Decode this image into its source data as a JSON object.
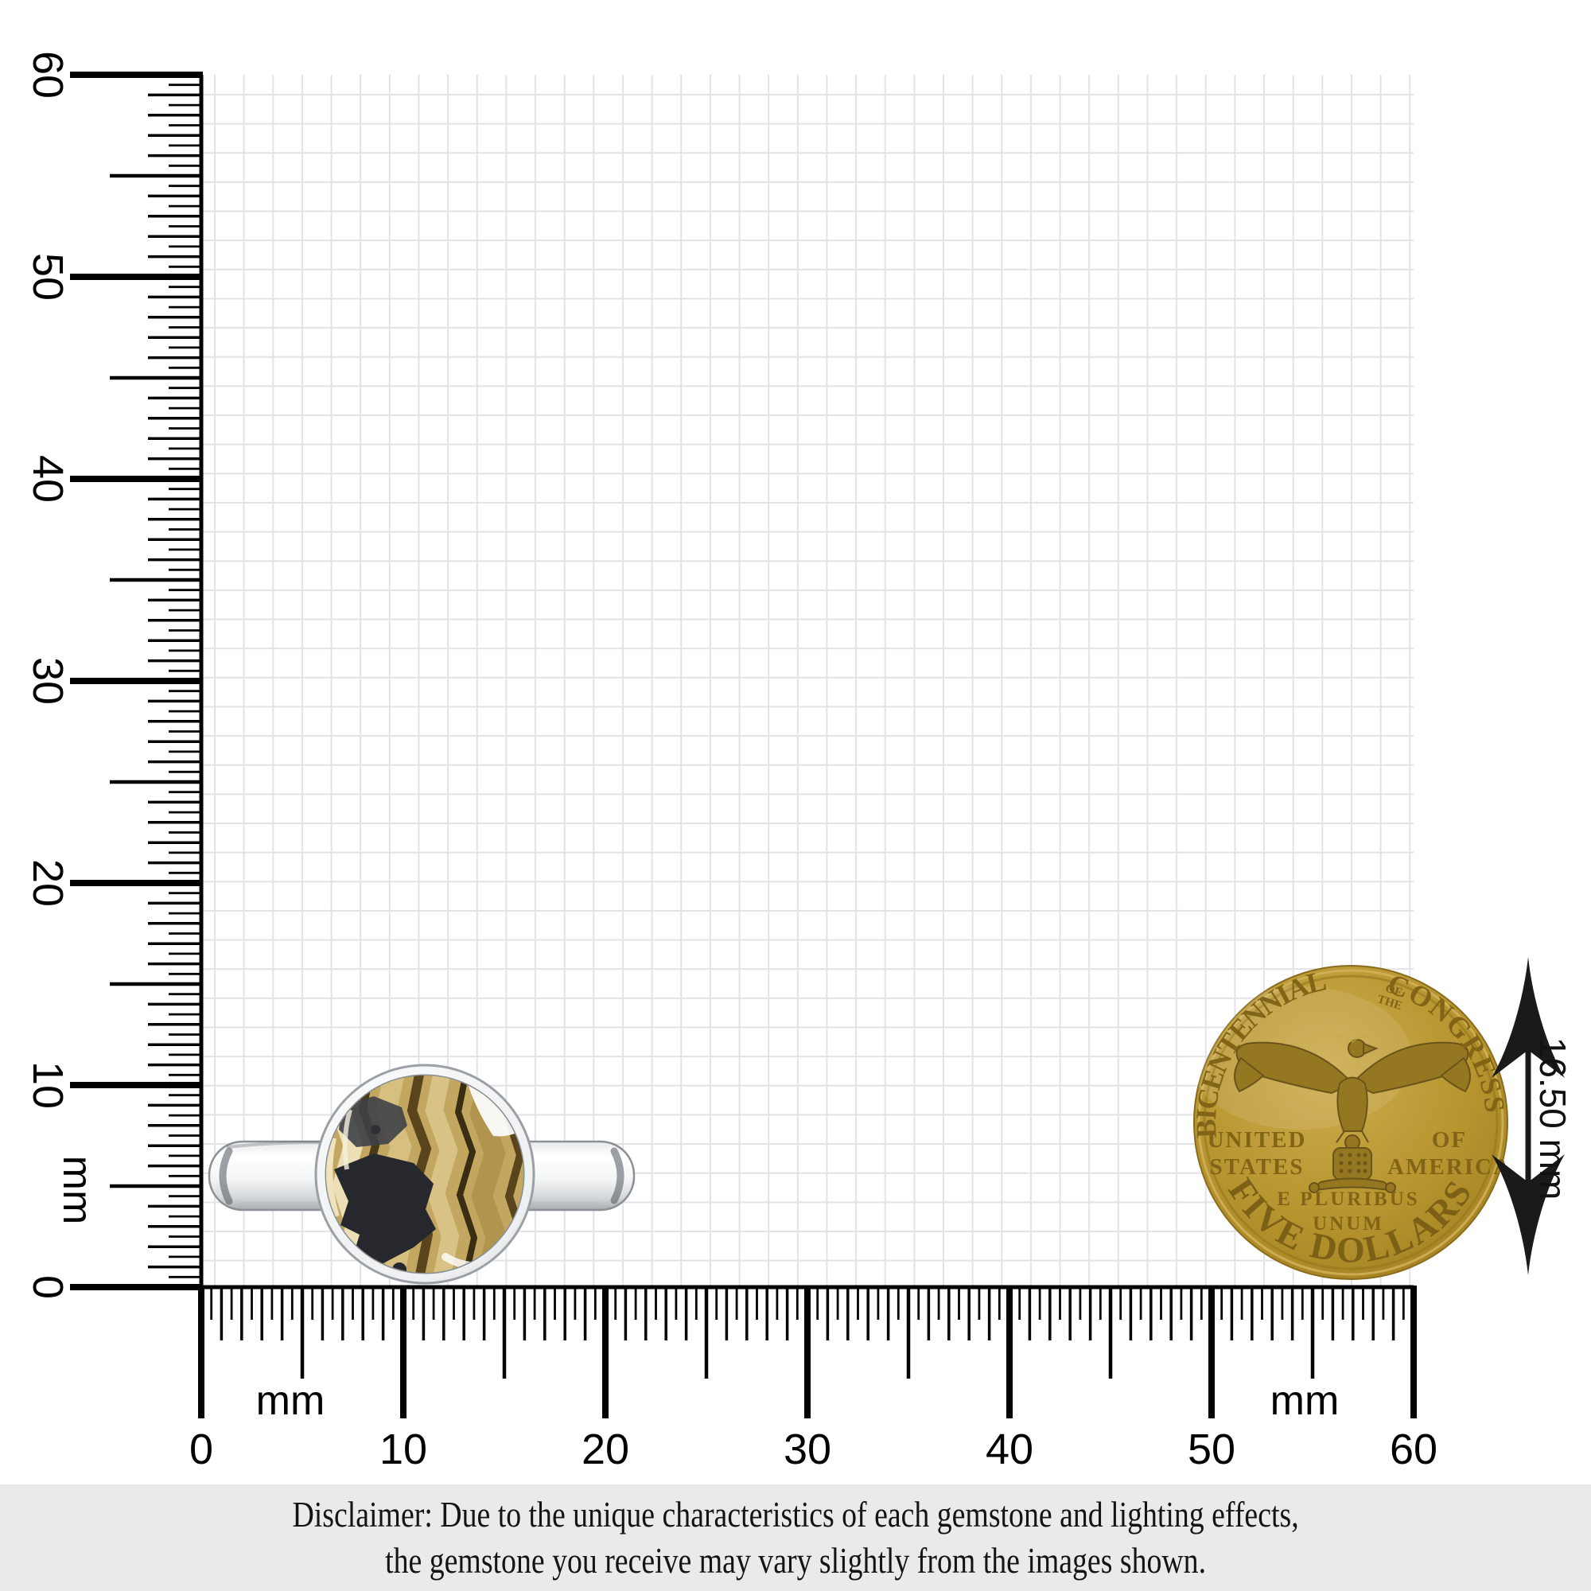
{
  "rulers": {
    "unit_label": "mm",
    "min_mm": 0,
    "max_mm": 60,
    "label_step_mm": 10,
    "h_numbers": [
      "0",
      "10",
      "20",
      "30",
      "40",
      "50",
      "60"
    ],
    "v_numbers": [
      "60",
      "50",
      "40",
      "30",
      "20",
      "10",
      "0"
    ]
  },
  "measurement": {
    "label": "16.50 mm"
  },
  "coin": {
    "arc_left": "BICENTENNIAL",
    "of_small_line1": "OF",
    "of_small_line2": "THE",
    "arc_right": "CONGRESS",
    "left_line1": "UNITED",
    "left_line2": "STATES",
    "right_line1": "OF",
    "right_line2": "AMERICA",
    "motto_line1": "E PLURIBUS",
    "motto_line2": "UNUM",
    "arc_bottom": "FIVE DOLLARS"
  },
  "disclaimer": {
    "line1": "Disclaimer: Due to the unique characteristics of each gemstone and lighting effects,",
    "line2": "the gemstone you receive may vary slightly from the images shown."
  },
  "colors": {
    "grid_line": "#e3e3e7",
    "ruler": "#000000",
    "coin_gold": "#b6952f",
    "coin_letter": "#826417",
    "stone_tan": "#c3a761",
    "stone_black": "#26282d",
    "silver": "#f2f3f4",
    "disclaimer_bg": "#eaeaea"
  }
}
